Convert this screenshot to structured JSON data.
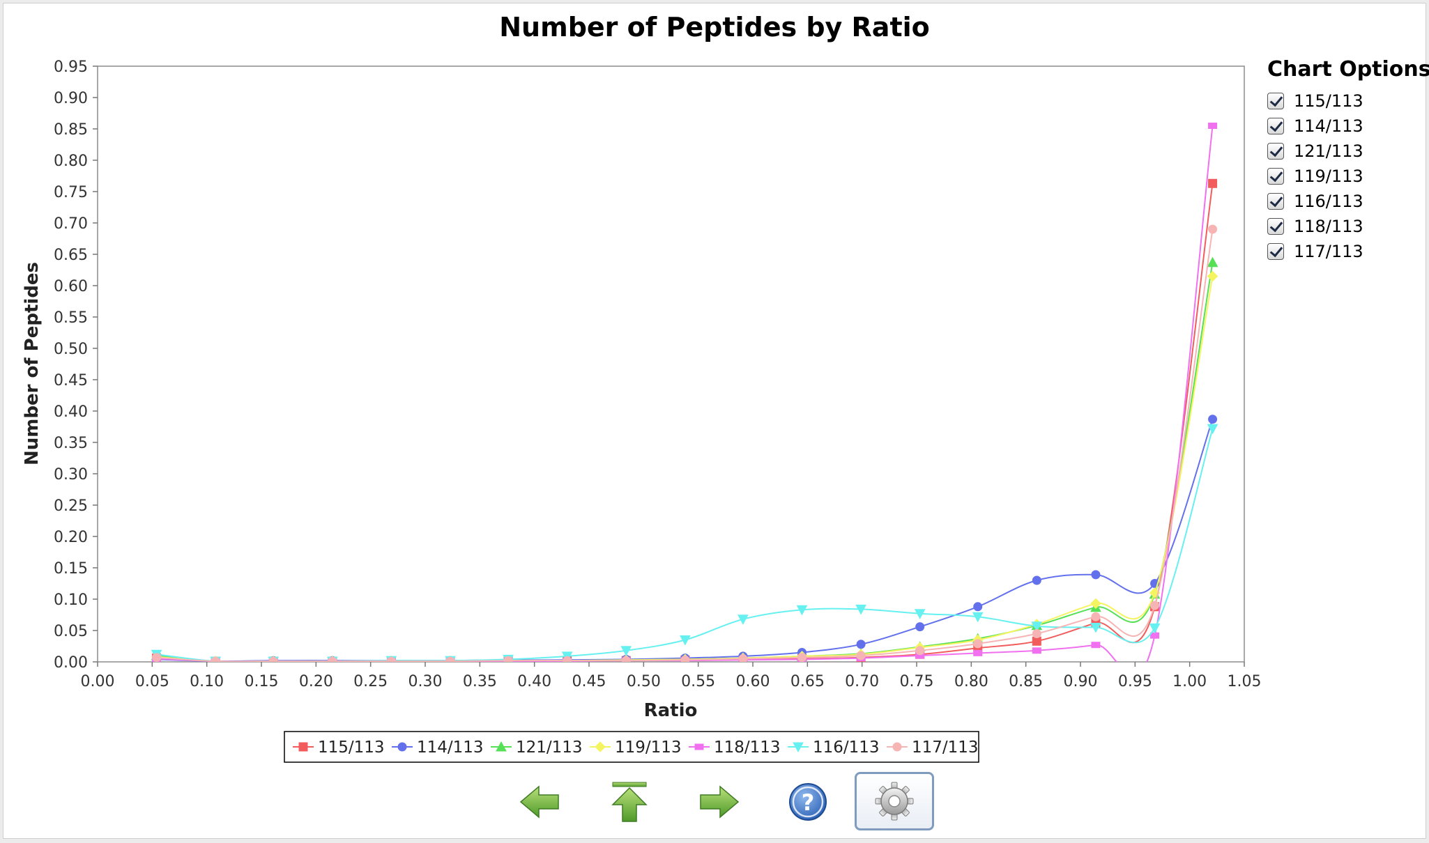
{
  "chart_data": {
    "type": "line",
    "title": "Number of Peptides by Ratio",
    "xlabel": "Ratio",
    "ylabel": "Number of Peptides",
    "xlim": [
      0.0,
      1.05
    ],
    "ylim": [
      0.0,
      0.95
    ],
    "x_ticks": [
      "0.00",
      "0.05",
      "0.10",
      "0.15",
      "0.20",
      "0.25",
      "0.30",
      "0.35",
      "0.40",
      "0.45",
      "0.50",
      "0.55",
      "0.60",
      "0.65",
      "0.70",
      "0.75",
      "0.80",
      "0.85",
      "0.90",
      "0.95",
      "1.00",
      "1.05"
    ],
    "y_ticks": [
      "0.00",
      "0.05",
      "0.10",
      "0.15",
      "0.20",
      "0.25",
      "0.30",
      "0.35",
      "0.40",
      "0.45",
      "0.50",
      "0.55",
      "0.60",
      "0.65",
      "0.70",
      "0.75",
      "0.80",
      "0.85",
      "0.90",
      "0.95"
    ],
    "grid": false,
    "legend_position": "bottom",
    "x": [
      0.054,
      0.108,
      0.161,
      0.215,
      0.269,
      0.323,
      0.376,
      0.43,
      0.484,
      0.538,
      0.591,
      0.645,
      0.699,
      0.753,
      0.806,
      0.86,
      0.914,
      0.968,
      1.021
    ],
    "series": [
      {
        "name": "115/113",
        "color": "#f25c5c",
        "marker": "square",
        "values": [
          0.006,
          0.001,
          0.001,
          0.001,
          0.001,
          0.001,
          0.002,
          0.002,
          0.002,
          0.003,
          0.004,
          0.005,
          0.007,
          0.012,
          0.022,
          0.033,
          0.062,
          0.088,
          0.763
        ]
      },
      {
        "name": "114/113",
        "color": "#6270ec",
        "marker": "circle",
        "values": [
          0.004,
          0.001,
          0.002,
          0.002,
          0.002,
          0.002,
          0.003,
          0.003,
          0.004,
          0.006,
          0.009,
          0.015,
          0.028,
          0.056,
          0.088,
          0.13,
          0.139,
          0.125,
          0.387
        ]
      },
      {
        "name": "121/113",
        "color": "#55e055",
        "marker": "triangle-up",
        "values": [
          0.01,
          0.001,
          0.001,
          0.001,
          0.001,
          0.001,
          0.002,
          0.002,
          0.003,
          0.004,
          0.006,
          0.009,
          0.013,
          0.024,
          0.037,
          0.058,
          0.087,
          0.108,
          0.637
        ]
      },
      {
        "name": "119/113",
        "color": "#f4f460",
        "marker": "diamond",
        "values": [
          0.008,
          0.001,
          0.001,
          0.001,
          0.001,
          0.001,
          0.002,
          0.002,
          0.003,
          0.004,
          0.006,
          0.009,
          0.012,
          0.023,
          0.035,
          0.06,
          0.093,
          0.11,
          0.615
        ]
      },
      {
        "name": "118/113",
        "color": "#f070f0",
        "marker": "rect",
        "values": [
          0.005,
          0.001,
          0.001,
          0.001,
          0.001,
          0.001,
          0.001,
          0.001,
          0.002,
          0.002,
          0.003,
          0.004,
          0.006,
          0.01,
          0.014,
          0.018,
          0.027,
          0.042,
          0.855
        ]
      },
      {
        "name": "116/113",
        "color": "#66f0f0",
        "marker": "triangle-down",
        "values": [
          0.012,
          0.001,
          0.001,
          0.001,
          0.002,
          0.002,
          0.004,
          0.009,
          0.018,
          0.035,
          0.068,
          0.083,
          0.084,
          0.077,
          0.072,
          0.057,
          0.055,
          0.054,
          0.372
        ]
      },
      {
        "name": "117/113",
        "color": "#f7b4b4",
        "marker": "circle",
        "values": [
          0.007,
          0.001,
          0.001,
          0.001,
          0.001,
          0.001,
          0.002,
          0.002,
          0.002,
          0.003,
          0.005,
          0.007,
          0.01,
          0.018,
          0.029,
          0.045,
          0.072,
          0.09,
          0.69
        ]
      }
    ]
  },
  "options": {
    "title": "Chart Options",
    "items": [
      {
        "label": "115/113"
      },
      {
        "label": "114/113"
      },
      {
        "label": "121/113"
      },
      {
        "label": "119/113"
      },
      {
        "label": "116/113"
      },
      {
        "label": "118/113"
      },
      {
        "label": "117/113"
      }
    ]
  },
  "toolbar": {
    "icons": [
      "arrow-left-icon",
      "arrow-top-icon",
      "arrow-right-icon",
      "help-icon",
      "gear-icon"
    ],
    "help_glyph": "?"
  }
}
